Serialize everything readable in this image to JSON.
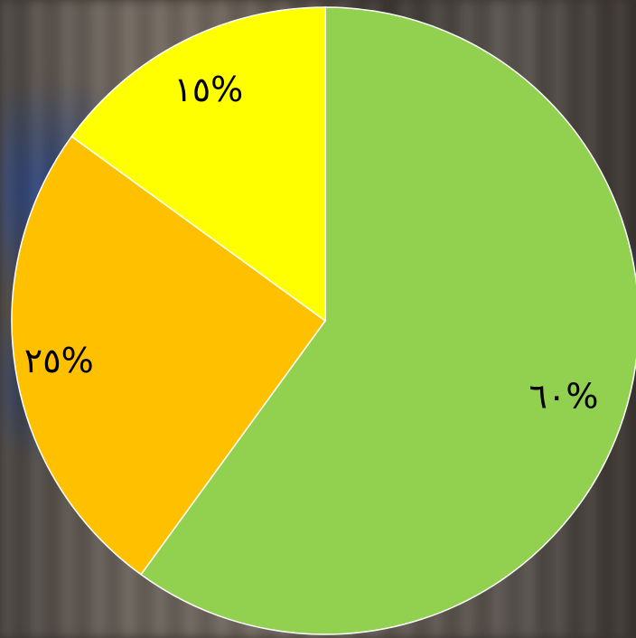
{
  "chart_data": {
    "type": "pie",
    "slices": [
      {
        "label": "٦٠%",
        "value": 60,
        "color": "#92D050"
      },
      {
        "label": "٢٥%",
        "value": 25,
        "color": "#FFC000"
      },
      {
        "label": "١٥%",
        "value": 15,
        "color": "#FFFF00"
      }
    ],
    "start": "top",
    "direction": "clockwise",
    "legend": "none"
  }
}
